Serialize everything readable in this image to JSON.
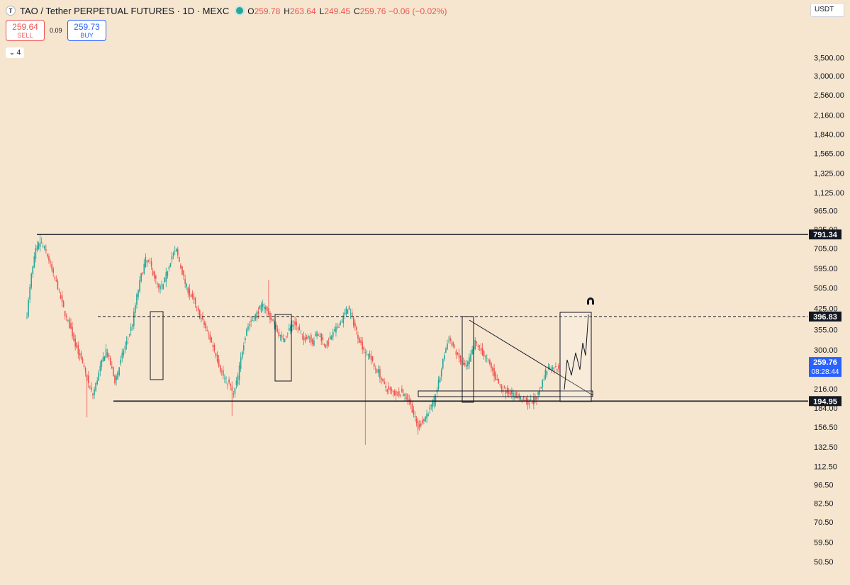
{
  "header": {
    "symbol_icon": "T",
    "title": "TAO / Tether PERPETUAL FUTURES · 1D · MEXC",
    "status_color": "#26a69a",
    "ohlc": [
      {
        "key": "O",
        "value": "259.78"
      },
      {
        "key": "H",
        "value": "263.64"
      },
      {
        "key": "L",
        "value": "249.45"
      },
      {
        "key": "C",
        "value": "259.76 −0.06 (−0.02%)"
      }
    ]
  },
  "trade": {
    "sell_price": "259.64",
    "sell_label": "SELL",
    "spread": "0.09",
    "buy_price": "259.73",
    "buy_label": "BUY"
  },
  "indicators": {
    "label": "4",
    "icon": "chevron-down-icon"
  },
  "currency": "USDT",
  "chart_data": {
    "type": "candlestick",
    "y_scale": "log",
    "ylim": [
      45,
      3800
    ],
    "y_ticks": [
      "3,500.00",
      "3,000.00",
      "2,560.00",
      "2,160.00",
      "1,840.00",
      "1,565.00",
      "1,325.00",
      "1,125.00",
      "965.00",
      "825.00",
      "705.00",
      "595.00",
      "505.00",
      "425.00",
      "355.00",
      "300.00",
      "216.00",
      "184.00",
      "156.50",
      "132.50",
      "112.50",
      "96.50",
      "82.50",
      "70.50",
      "59.50",
      "50.50"
    ],
    "price_labels": [
      {
        "value": "791.34",
        "price": 791.34,
        "bg": "#131722",
        "fg": "#ffffff"
      },
      {
        "value": "396.83",
        "price": 396.83,
        "bg": "#131722",
        "fg": "#ffffff"
      },
      {
        "value": "259.76",
        "time": "08:28:44",
        "price": 259.76,
        "bg": "#2962ff",
        "fg": "#ffffff"
      },
      {
        "value": "194.95",
        "price": 194.95,
        "bg": "#131722",
        "fg": "#ffffff"
      }
    ],
    "levels": [
      {
        "price": 791.34,
        "style": "solid"
      },
      {
        "price": 396.83,
        "style": "dashed"
      },
      {
        "price": 194.95,
        "style": "solid"
      }
    ],
    "series_colors": {
      "up": "#26a69a",
      "down": "#ef5350"
    },
    "close_anchors": [
      [
        0,
        405
      ],
      [
        3,
        560
      ],
      [
        6,
        690
      ],
      [
        9,
        740
      ],
      [
        12,
        705
      ],
      [
        15,
        640
      ],
      [
        18,
        560
      ],
      [
        21,
        510
      ],
      [
        24,
        440
      ],
      [
        27,
        390
      ],
      [
        30,
        355
      ],
      [
        33,
        315
      ],
      [
        36,
        285
      ],
      [
        39,
        255
      ],
      [
        42,
        225
      ],
      [
        45,
        205
      ],
      [
        48,
        235
      ],
      [
        51,
        270
      ],
      [
        54,
        300
      ],
      [
        57,
        265
      ],
      [
        60,
        230
      ],
      [
        63,
        260
      ],
      [
        66,
        300
      ],
      [
        69,
        330
      ],
      [
        72,
        375
      ],
      [
        75,
        470
      ],
      [
        78,
        560
      ],
      [
        81,
        640
      ],
      [
        84,
        620
      ],
      [
        87,
        555
      ],
      [
        90,
        500
      ],
      [
        93,
        515
      ],
      [
        96,
        590
      ],
      [
        99,
        660
      ],
      [
        102,
        690
      ],
      [
        105,
        600
      ],
      [
        108,
        525
      ],
      [
        111,
        480
      ],
      [
        114,
        450
      ],
      [
        117,
        410
      ],
      [
        120,
        380
      ],
      [
        123,
        350
      ],
      [
        126,
        320
      ],
      [
        129,
        290
      ],
      [
        132,
        255
      ],
      [
        135,
        235
      ],
      [
        138,
        225
      ],
      [
        141,
        205
      ],
      [
        144,
        240
      ],
      [
        147,
        300
      ],
      [
        150,
        360
      ],
      [
        153,
        380
      ],
      [
        156,
        400
      ],
      [
        159,
        425
      ],
      [
        162,
        440
      ],
      [
        165,
        400
      ],
      [
        168,
        380
      ],
      [
        171,
        355
      ],
      [
        174,
        325
      ],
      [
        177,
        340
      ],
      [
        180,
        365
      ],
      [
        183,
        375
      ],
      [
        186,
        350
      ],
      [
        189,
        325
      ],
      [
        192,
        340
      ],
      [
        195,
        320
      ],
      [
        198,
        345
      ],
      [
        201,
        330
      ],
      [
        204,
        310
      ],
      [
        207,
        330
      ],
      [
        210,
        350
      ],
      [
        213,
        370
      ],
      [
        216,
        395
      ],
      [
        219,
        430
      ],
      [
        222,
        390
      ],
      [
        225,
        350
      ],
      [
        228,
        315
      ],
      [
        231,
        295
      ],
      [
        234,
        285
      ],
      [
        237,
        260
      ],
      [
        240,
        250
      ],
      [
        243,
        225
      ],
      [
        246,
        215
      ],
      [
        249,
        210
      ],
      [
        252,
        207
      ],
      [
        255,
        210
      ],
      [
        258,
        205
      ],
      [
        261,
        195
      ],
      [
        264,
        175
      ],
      [
        267,
        155
      ],
      [
        270,
        165
      ],
      [
        273,
        175
      ],
      [
        276,
        185
      ],
      [
        279,
        205
      ],
      [
        282,
        240
      ],
      [
        285,
        290
      ],
      [
        288,
        330
      ],
      [
        291,
        310
      ],
      [
        294,
        285
      ],
      [
        297,
        265
      ],
      [
        300,
        260
      ],
      [
        303,
        285
      ],
      [
        306,
        320
      ],
      [
        309,
        305
      ],
      [
        312,
        285
      ],
      [
        315,
        270
      ],
      [
        318,
        250
      ],
      [
        321,
        230
      ],
      [
        324,
        218
      ],
      [
        327,
        212
      ],
      [
        330,
        210
      ],
      [
        333,
        205
      ],
      [
        336,
        200
      ],
      [
        339,
        196
      ],
      [
        342,
        192
      ],
      [
        345,
        195
      ],
      [
        348,
        200
      ],
      [
        351,
        220
      ],
      [
        354,
        250
      ],
      [
        357,
        262
      ],
      [
        360,
        255
      ],
      [
        363,
        259.76
      ]
    ]
  }
}
